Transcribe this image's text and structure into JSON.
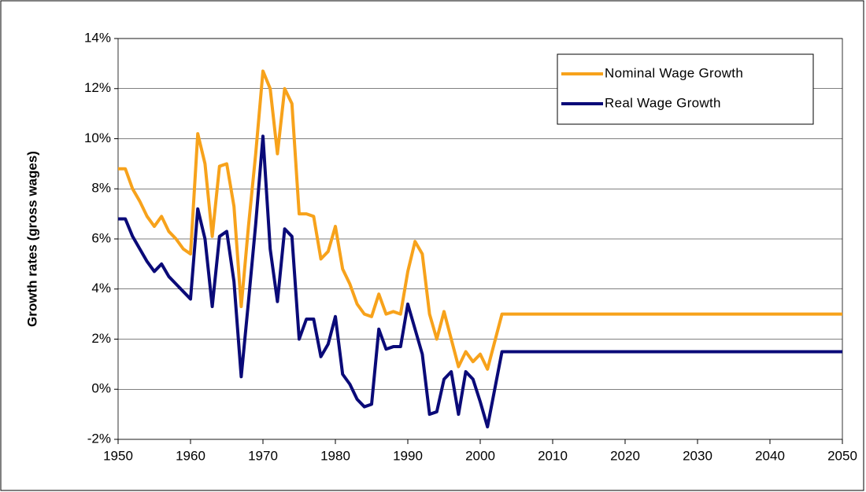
{
  "chart_data": {
    "type": "line",
    "y_label": "Growth rates (gross wages)",
    "x": [
      1950,
      1951,
      1952,
      1953,
      1954,
      1955,
      1956,
      1957,
      1958,
      1959,
      1960,
      1961,
      1962,
      1963,
      1964,
      1965,
      1966,
      1967,
      1968,
      1969,
      1970,
      1971,
      1972,
      1973,
      1974,
      1975,
      1976,
      1977,
      1978,
      1979,
      1980,
      1981,
      1982,
      1983,
      1984,
      1985,
      1986,
      1987,
      1988,
      1989,
      1990,
      1991,
      1992,
      1993,
      1994,
      1995,
      1996,
      1997,
      1998,
      1999,
      2000,
      2001,
      2002,
      2003,
      2050
    ],
    "series": [
      {
        "name": "Nominal Wage Growth",
        "color": "#f7a21b",
        "values": [
          8.8,
          8.8,
          8.0,
          7.5,
          6.9,
          6.5,
          6.9,
          6.3,
          6.0,
          5.6,
          5.4,
          10.2,
          9.0,
          6.1,
          8.9,
          9.0,
          7.3,
          3.3,
          6.5,
          9.4,
          12.7,
          12.0,
          9.4,
          12.0,
          11.4,
          7.0,
          7.0,
          6.9,
          5.2,
          5.5,
          6.5,
          4.8,
          4.2,
          3.4,
          3.0,
          2.9,
          3.8,
          3.0,
          3.1,
          3.0,
          4.7,
          5.9,
          5.4,
          3.0,
          2.0,
          3.1,
          2.0,
          0.9,
          1.5,
          1.1,
          1.4,
          0.8,
          1.9,
          3.0,
          3.0
        ]
      },
      {
        "name": "Real Wage Growth",
        "color": "#0a0a78",
        "values": [
          6.8,
          6.8,
          6.1,
          5.6,
          5.1,
          4.7,
          5.0,
          4.5,
          4.2,
          3.9,
          3.6,
          7.2,
          6.0,
          3.3,
          6.1,
          6.3,
          4.3,
          0.5,
          3.5,
          6.6,
          10.1,
          5.6,
          3.5,
          6.4,
          6.1,
          2.0,
          2.8,
          2.8,
          1.3,
          1.8,
          2.9,
          0.6,
          0.2,
          -0.4,
          -0.7,
          -0.6,
          2.4,
          1.6,
          1.7,
          1.7,
          3.4,
          2.4,
          1.4,
          -1.0,
          -0.9,
          0.4,
          0.7,
          -1.0,
          0.7,
          0.4,
          -0.5,
          -1.5,
          0.0,
          1.5,
          1.5
        ]
      }
    ],
    "xlim": [
      1950,
      2050
    ],
    "xticks": [
      1950,
      1960,
      1970,
      1980,
      1990,
      2000,
      2010,
      2020,
      2030,
      2040,
      2050
    ],
    "ylim": [
      -2,
      14
    ],
    "yticks": [
      {
        "value": -2,
        "label": "-2%"
      },
      {
        "value": 0,
        "label": "0%"
      },
      {
        "value": 2,
        "label": "2%"
      },
      {
        "value": 4,
        "label": "4%"
      },
      {
        "value": 6,
        "label": "6%"
      },
      {
        "value": 8,
        "label": "8%"
      },
      {
        "value": 10,
        "label": "10%"
      },
      {
        "value": 12,
        "label": "12%"
      },
      {
        "value": 14,
        "label": "14%"
      }
    ],
    "grid": true,
    "legend": "upper right"
  }
}
